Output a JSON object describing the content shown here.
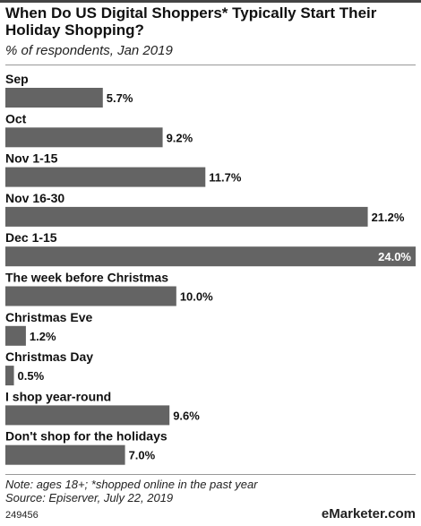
{
  "header": {
    "title": "When Do US Digital Shoppers* Typically Start Their Holiday Shopping?",
    "subtitle": "% of respondents, Jan 2019"
  },
  "footer": {
    "note": "Note: ages 18+; *shopped online in the past year",
    "source": "Source: Episerver, July 22, 2019",
    "id": "249456",
    "brand_prefix": "e",
    "brand_name": "Marketer",
    "brand_suffix": ".com"
  },
  "colors": {
    "bar": "#646464",
    "label_inside": "#ffffff",
    "text": "#111111"
  },
  "chart_data": {
    "type": "bar",
    "orientation": "horizontal",
    "title": "When Do US Digital Shoppers* Typically Start Their Holiday Shopping?",
    "subtitle": "% of respondents, Jan 2019",
    "unit": "%",
    "categories": [
      "Sep",
      "Oct",
      "Nov 1-15",
      "Nov 16-30",
      "Dec 1-15",
      "The week before Christmas",
      "Christmas Eve",
      "Christmas Day",
      "I shop year-round",
      "Don't shop for the holidays"
    ],
    "values": [
      5.7,
      9.2,
      11.7,
      21.2,
      24.0,
      10.0,
      1.2,
      0.5,
      9.6,
      7.0
    ],
    "value_labels": [
      "5.7%",
      "9.2%",
      "11.7%",
      "21.2%",
      "24.0%",
      "10.0%",
      "1.2%",
      "0.5%",
      "9.6%",
      "7.0%"
    ],
    "xlim": [
      0,
      24.0
    ],
    "grid": false,
    "legend": "none"
  }
}
